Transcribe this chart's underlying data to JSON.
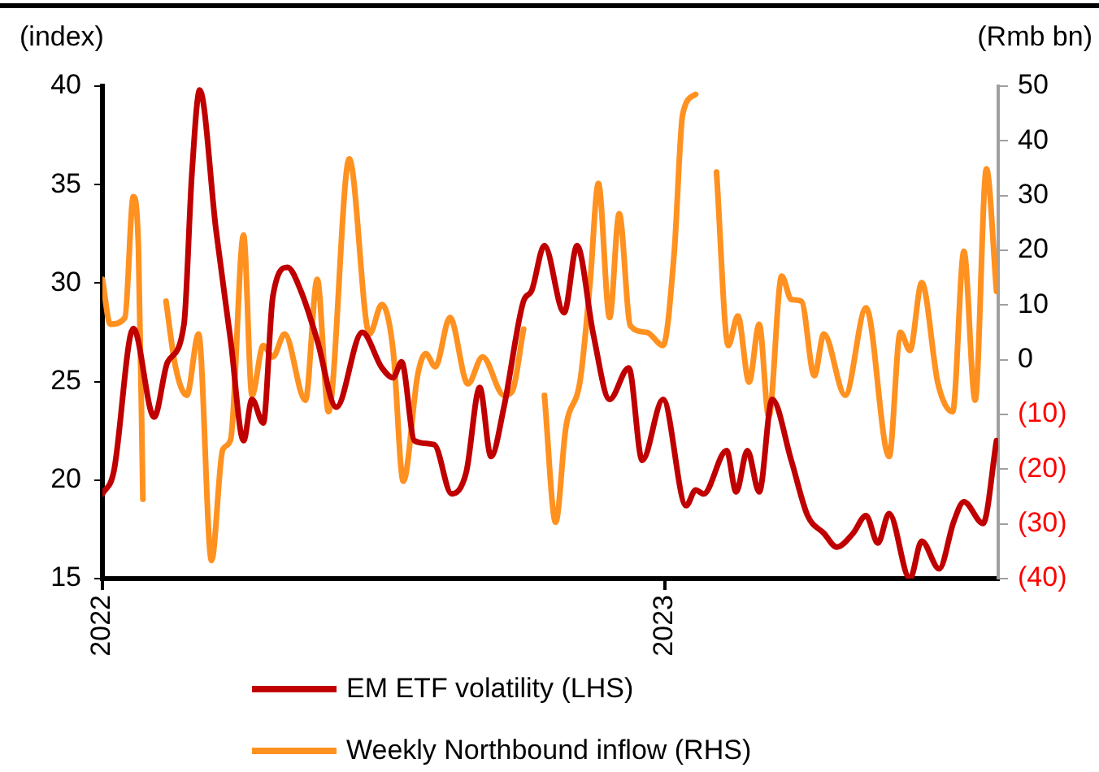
{
  "chart_data": {
    "type": "line",
    "ylabel": "(index)",
    "y2label": "(Rmb bn)",
    "xlim": [
      2022,
      2023.593
    ],
    "xticks": [
      2022,
      2023
    ],
    "ylim": [
      15,
      40
    ],
    "yticks": [
      15,
      20,
      25,
      30,
      35,
      40
    ],
    "y2lim": [
      -40,
      50
    ],
    "y2ticks": [
      {
        "value": -40,
        "label": "(40)"
      },
      {
        "value": -30,
        "label": "(30)"
      },
      {
        "value": -20,
        "label": "(20)"
      },
      {
        "value": -10,
        "label": "(10)"
      },
      0,
      10,
      20,
      30,
      40,
      50
    ],
    "grid": false,
    "legend": "bottom",
    "marker": "none",
    "line_style": "solid",
    "series": [
      {
        "name": "EM ETF volatility (LHS)",
        "color": "#c00000",
        "x": [
          2022,
          2022.02,
          2022.055,
          2022.092,
          2022.116,
          2022.145,
          2022.159,
          2022.173,
          2022.202,
          2022.228,
          2022.251,
          2022.266,
          2022.286,
          2022.303,
          2022.329,
          2022.353,
          2022.382,
          2022.416,
          2022.462,
          2022.497,
          2022.517,
          2022.532,
          2022.555,
          2022.59,
          2022.621,
          2022.647,
          2022.671,
          2022.691,
          2022.714,
          2022.749,
          2022.763,
          2022.786,
          2022.821,
          2022.844,
          2022.873,
          2022.902,
          2022.936,
          2022.96,
          2022.997,
          2023.038,
          2023.055,
          2023.069,
          2023.11,
          2023.127,
          2023.147,
          2023.168,
          2023.191,
          2023.225,
          2023.254,
          2023.283,
          2023.306,
          2023.335,
          2023.358,
          2023.379,
          2023.399,
          2023.436,
          2023.457,
          2023.488,
          2023.514,
          2023.532,
          2023.566,
          2023.59
        ],
        "values": [
          19.3,
          20.4,
          27.7,
          23.2,
          26,
          27.9,
          35.5,
          39.8,
          32.7,
          27.1,
          22,
          24.1,
          22.9,
          29.3,
          30.8,
          29.6,
          27.1,
          23.7,
          27.5,
          25.7,
          25.2,
          26,
          22,
          21.8,
          19.3,
          20.4,
          24.7,
          21.2,
          23.7,
          29.1,
          29.6,
          31.9,
          28.5,
          31.9,
          27.4,
          24.1,
          25.7,
          21,
          24.1,
          18.7,
          19.5,
          19.3,
          21.5,
          19.4,
          21.5,
          19.4,
          24.1,
          21,
          18.2,
          17.3,
          16.6,
          17.3,
          18.2,
          16.8,
          18.3,
          15,
          16.9,
          15.5,
          17.9,
          18.9,
          17.8,
          22
        ]
      },
      {
        "name": "Weekly Northbound inflow (RHS)",
        "color": "#ff9120",
        "axis": "y2",
        "x": [
          2022,
          2022.014,
          2022.04,
          2022.055,
          2022.064,
          2022.072,
          2022.092,
          2022.113,
          2022.13,
          2022.15,
          2022.171,
          2022.194,
          2022.214,
          2022.228,
          2022.251,
          2022.266,
          2022.286,
          2022.303,
          2022.324,
          2022.361,
          2022.382,
          2022.402,
          2022.439,
          2022.475,
          2022.497,
          2022.517,
          2022.535,
          2022.561,
          2022.575,
          2022.592,
          2022.618,
          2022.65,
          2022.676,
          2022.714,
          2022.728,
          2022.749,
          2022.767,
          2022.786,
          2022.806,
          2022.824,
          2022.85,
          2022.867,
          2022.882,
          2022.902,
          2022.919,
          2022.939,
          2022.968,
          2022.997,
          2023.017,
          2023.032,
          2023.055,
          2023.073,
          2023.092,
          2023.113,
          2023.13,
          2023.15,
          2023.168,
          2023.185,
          2023.208,
          2023.225,
          2023.243,
          2023.266,
          2023.283,
          2023.321,
          2023.358,
          2023.399,
          2023.419,
          2023.436,
          2023.457,
          2023.486,
          2023.512,
          2023.532,
          2023.552,
          2023.572,
          2023.59
        ],
        "values": [
          14.7,
          6.5,
          7.7,
          29.8,
          20.7,
          -25.5,
          null,
          10.7,
          -1.3,
          -6.5,
          4.7,
          -36.7,
          -16.4,
          -14.6,
          22.8,
          -6.5,
          2.6,
          0.5,
          4.7,
          -7.4,
          14.7,
          -9.5,
          36.7,
          4.7,
          10.1,
          1.7,
          -22.2,
          -2.6,
          1.1,
          -1.3,
          7.7,
          -4.4,
          0.5,
          -6.5,
          -5.9,
          5.6,
          null,
          -6.5,
          -29.7,
          -12.5,
          -3.5,
          13.8,
          32.2,
          7.7,
          26.7,
          6.2,
          5,
          2.6,
          19.8,
          44.9,
          48.5,
          null,
          34.3,
          2.6,
          8,
          -4.1,
          6.5,
          -10.4,
          15.3,
          11,
          10.7,
          -2.9,
          4.7,
          -6.5,
          9.5,
          -17.7,
          5,
          1.7,
          14.1,
          -4.4,
          -9.5,
          19.8,
          -7.4,
          34.9,
          12.5
        ]
      }
    ]
  }
}
